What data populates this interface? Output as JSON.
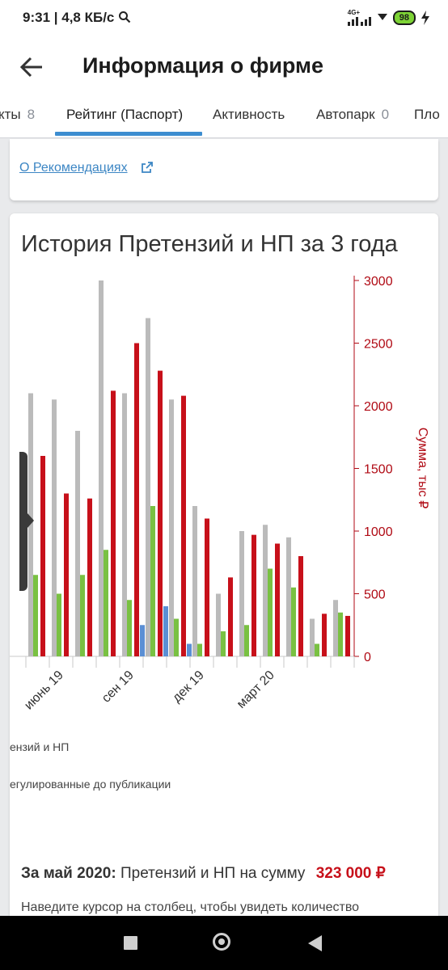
{
  "status_bar": {
    "time": "9:31",
    "network_speed": "4,8 КБ/с",
    "signal_label": "4G+",
    "battery": "98",
    "icons": [
      "search-icon",
      "signal-icon",
      "wifi-icon",
      "battery-icon",
      "charging-icon"
    ]
  },
  "header": {
    "title": "Информация о фирме",
    "back_icon": "arrow-left-icon"
  },
  "tabs": [
    {
      "label": "кты",
      "count": "8"
    },
    {
      "label": "Рейтинг (Паспорт)",
      "count": "",
      "active": true
    },
    {
      "label": "Активность",
      "count": ""
    },
    {
      "label": "Автопарк",
      "count": "0"
    },
    {
      "label": "Пло",
      "count": ""
    }
  ],
  "recommendations_link": "О Рекомендациях",
  "chart_card": {
    "title": "История Претензий и НП за 3 года",
    "legend_1": "ензий и НП",
    "legend_2": "егулированные до публикации",
    "summary_label": "За май 2020:",
    "summary_text": "Претензий и НП на сумму",
    "summary_amount": "323 000 ₽",
    "hint": "Наведите курсор на столбец, чтобы увидеть количество"
  },
  "chart_data": {
    "type": "bar",
    "ylabel_right": "Сумма, тыс ₽",
    "ylim_right": [
      0,
      3000
    ],
    "right_ticks": [
      0,
      500,
      1000,
      1500,
      2000,
      2500,
      3000
    ],
    "x_tick_labels": [
      "июнь 19",
      "сен 19",
      "дек 19",
      "март 20"
    ],
    "colors": {
      "gray": "#bbbbbb",
      "green": "#79c142",
      "blue": "#5b8fd4",
      "red": "#c7101a",
      "axis_right": "#b00a14"
    },
    "months": [
      {
        "gray": 2100,
        "green": 650,
        "blue": 0,
        "red": 1600
      },
      {
        "gray": 2050,
        "green": 500,
        "blue": 0,
        "red": 1300
      },
      {
        "gray": 1800,
        "green": 650,
        "blue": 0,
        "red": 1260
      },
      {
        "gray": 3000,
        "green": 850,
        "blue": 0,
        "red": 2120
      },
      {
        "gray": 2100,
        "green": 450,
        "blue": 0,
        "red": 2500
      },
      {
        "gray": 2700,
        "green": 1200,
        "blue": 250,
        "red": 2280
      },
      {
        "gray": 2050,
        "green": 300,
        "blue": 400,
        "red": 2080
      },
      {
        "gray": 1200,
        "green": 100,
        "blue": 100,
        "red": 1100
      },
      {
        "gray": 500,
        "green": 200,
        "blue": 0,
        "red": 630
      },
      {
        "gray": 1000,
        "green": 250,
        "blue": 0,
        "red": 970
      },
      {
        "gray": 1050,
        "green": 700,
        "blue": 0,
        "red": 900
      },
      {
        "gray": 950,
        "green": 550,
        "blue": 0,
        "red": 800
      },
      {
        "gray": 300,
        "green": 100,
        "blue": 0,
        "red": 340
      },
      {
        "gray": 450,
        "green": 350,
        "blue": 0,
        "red": 323
      }
    ]
  }
}
